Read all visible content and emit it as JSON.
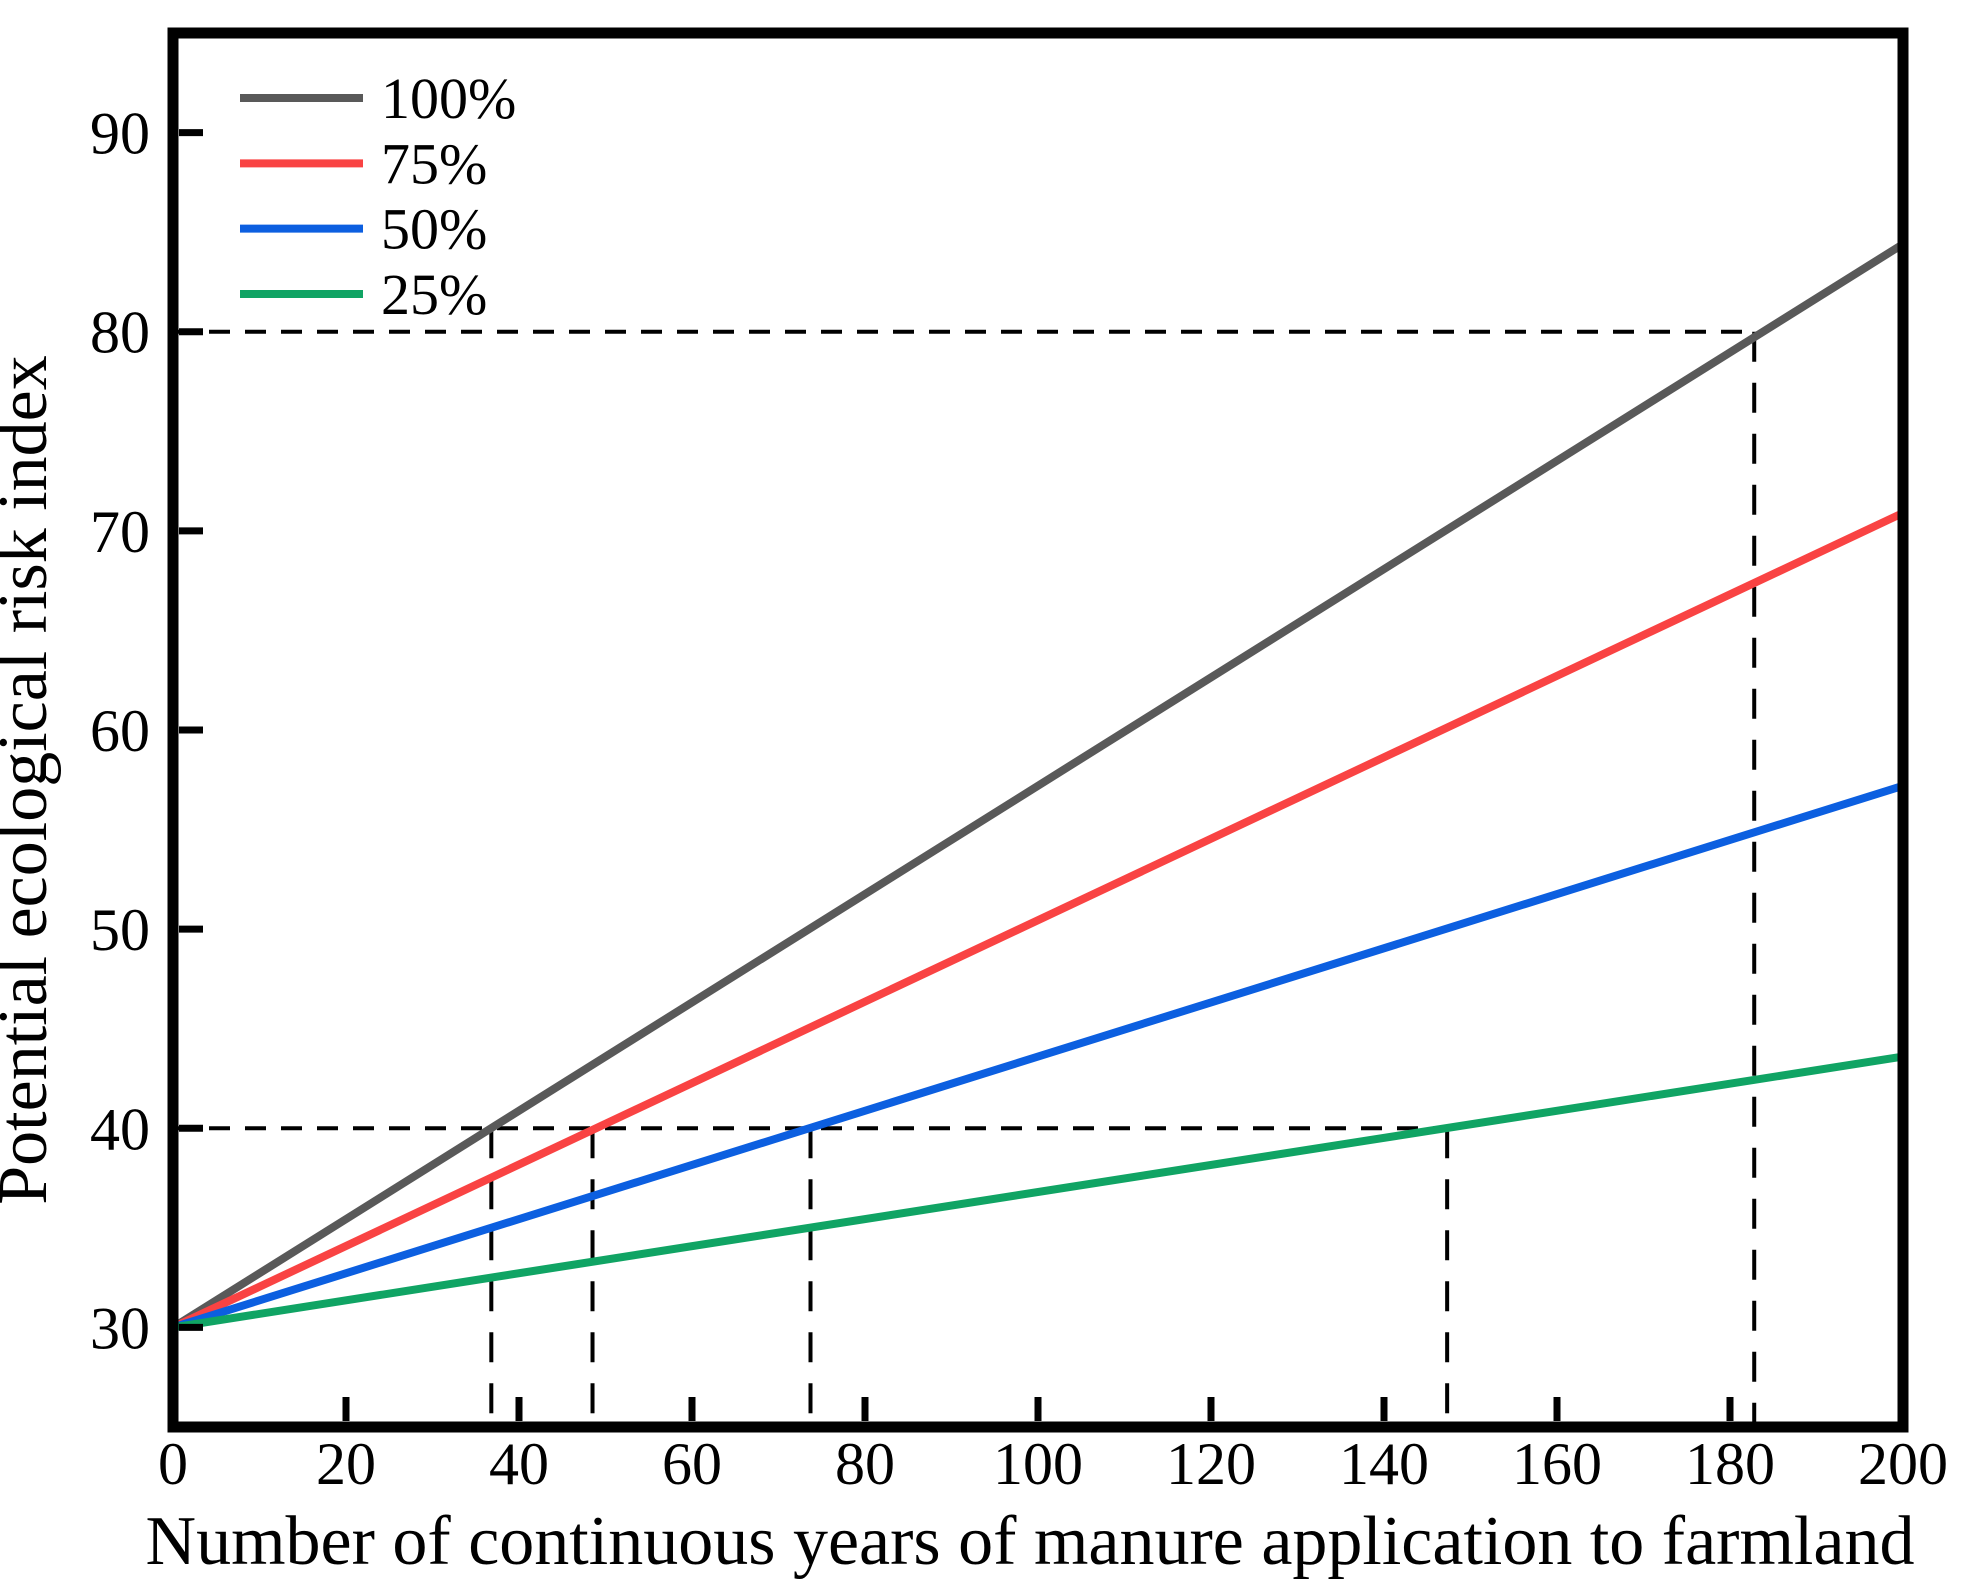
{
  "chart_data": {
    "type": "line",
    "title": "",
    "xlabel": "Number of continuous years of manure application to farmland",
    "ylabel": "Potential ecological risk index",
    "xlim": [
      0,
      200
    ],
    "ylim": [
      25,
      95
    ],
    "x_ticks": [
      0,
      20,
      40,
      60,
      80,
      100,
      120,
      140,
      160,
      180,
      200
    ],
    "y_ticks": [
      30,
      40,
      50,
      60,
      70,
      80,
      90
    ],
    "grid": false,
    "legend_position": "top-left",
    "axis_color": "#000000",
    "guide_color": "#000000",
    "series": [
      {
        "name": "100%",
        "color": "#595959",
        "x": [
          0,
          200
        ],
        "y": [
          30,
          84.4
        ],
        "slope_per_year": 0.272
      },
      {
        "name": "75%",
        "color": "#f94343",
        "x": [
          0,
          200
        ],
        "y": [
          30,
          70.9
        ],
        "slope_per_year": 0.204
      },
      {
        "name": "50%",
        "color": "#0c5fe0",
        "x": [
          0,
          200
        ],
        "y": [
          30,
          57.2
        ],
        "slope_per_year": 0.136
      },
      {
        "name": "25%",
        "color": "#10a464",
        "x": [
          0,
          200
        ],
        "y": [
          30,
          43.6
        ],
        "slope_per_year": 0.068
      }
    ],
    "reference_guides": {
      "horizontal": [
        {
          "y": 40,
          "x_start": 0,
          "x_end": 147.3
        },
        {
          "y": 80,
          "x_start": 0,
          "x_end": 182.8
        }
      ],
      "vertical": [
        {
          "x": 36.8,
          "y_top": 40
        },
        {
          "x": 48.5,
          "y_top": 40
        },
        {
          "x": 73.7,
          "y_top": 40
        },
        {
          "x": 147.3,
          "y_top": 40
        },
        {
          "x": 182.8,
          "y_top": 80
        }
      ]
    },
    "annotated_risk_thresholds": [
      40,
      80
    ]
  }
}
